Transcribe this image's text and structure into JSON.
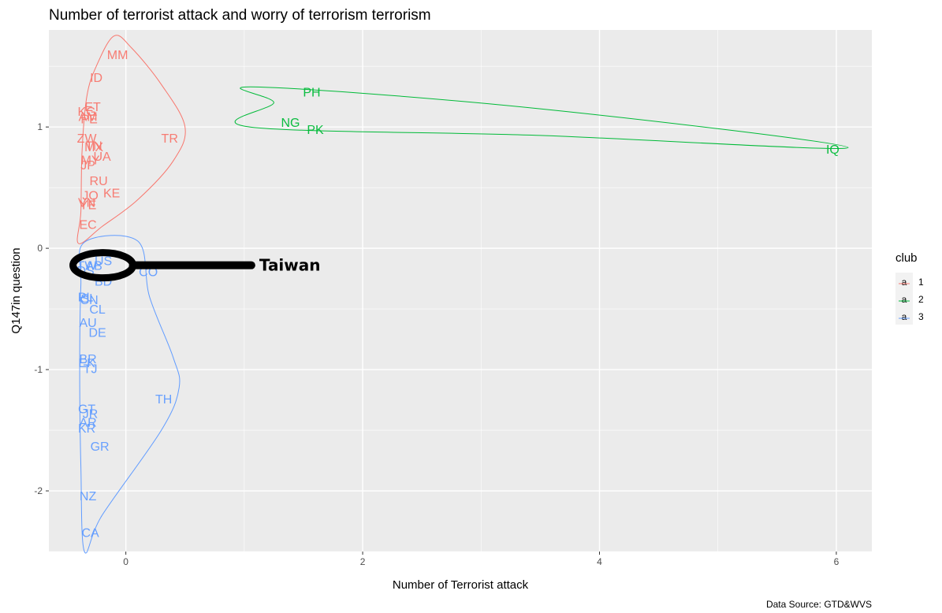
{
  "chart_data": {
    "type": "scatter",
    "title": "Number of terrorist attack and worry of terrorism terrorism",
    "xlabel": "Number of Terrorist attack",
    "ylabel": "Q147in question",
    "caption": "Data Source: GTD&WVS",
    "xlim": [
      -0.65,
      6.3
    ],
    "ylim": [
      -2.5,
      1.8
    ],
    "x_ticks": [
      0,
      2,
      4,
      6
    ],
    "x_tick_labels": [
      "0",
      "2",
      "4",
      "6"
    ],
    "y_ticks": [
      -2,
      -1,
      0,
      1
    ],
    "y_tick_labels": [
      "-2",
      "-1",
      "0",
      "1"
    ],
    "grid": true,
    "legend": {
      "title": "club",
      "position": "right",
      "key_glyph": "a",
      "entries": [
        {
          "label": "1",
          "color": "#F8766D"
        },
        {
          "label": "2",
          "color": "#00BA38"
        },
        {
          "label": "3",
          "color": "#619CFF"
        }
      ]
    },
    "series": [
      {
        "name": "1",
        "color": "#F8766D",
        "points": [
          {
            "label": "MM",
            "x": -0.07,
            "y": 1.6
          },
          {
            "label": "ID",
            "x": -0.25,
            "y": 1.41
          },
          {
            "label": "ET",
            "x": -0.28,
            "y": 1.17
          },
          {
            "label": "KG",
            "x": -0.33,
            "y": 1.13
          },
          {
            "label": "AM",
            "x": -0.32,
            "y": 1.09
          },
          {
            "label": "PE",
            "x": -0.31,
            "y": 1.07
          },
          {
            "label": "ZW",
            "x": -0.33,
            "y": 0.91
          },
          {
            "label": "TR",
            "x": 0.37,
            "y": 0.91
          },
          {
            "label": "TN",
            "x": -0.27,
            "y": 0.85
          },
          {
            "label": "MX",
            "x": -0.27,
            "y": 0.84
          },
          {
            "label": "UA",
            "x": -0.2,
            "y": 0.76
          },
          {
            "label": "MY",
            "x": -0.3,
            "y": 0.73
          },
          {
            "label": "JP",
            "x": -0.32,
            "y": 0.69
          },
          {
            "label": "RU",
            "x": -0.23,
            "y": 0.56
          },
          {
            "label": "KE",
            "x": -0.12,
            "y": 0.46
          },
          {
            "label": "JO",
            "x": -0.3,
            "y": 0.44
          },
          {
            "label": "VN",
            "x": -0.33,
            "y": 0.38
          },
          {
            "label": "YE",
            "x": -0.32,
            "y": 0.36
          },
          {
            "label": "EC",
            "x": -0.32,
            "y": 0.2
          }
        ]
      },
      {
        "name": "2",
        "color": "#00BA38",
        "points": [
          {
            "label": "PH",
            "x": 1.57,
            "y": 1.29
          },
          {
            "label": "NG",
            "x": 1.39,
            "y": 1.04
          },
          {
            "label": "PK",
            "x": 1.6,
            "y": 0.98
          },
          {
            "label": "IQ",
            "x": 5.97,
            "y": 0.82
          }
        ]
      },
      {
        "name": "3",
        "color": "#619CFF",
        "points": [
          {
            "label": "US",
            "x": -0.19,
            "y": -0.1
          },
          {
            "label": "TW",
            "x": -0.33,
            "y": -0.14
          },
          {
            "label": "AB",
            "x": -0.27,
            "y": -0.14
          },
          {
            "label": "CO",
            "x": 0.19,
            "y": -0.19
          },
          {
            "label": "DS",
            "x": -0.34,
            "y": -0.18
          },
          {
            "label": "BD",
            "x": -0.19,
            "y": -0.27
          },
          {
            "label": "PL",
            "x": -0.34,
            "y": -0.4
          },
          {
            "label": "SI",
            "x": -0.33,
            "y": -0.41
          },
          {
            "label": "CN",
            "x": -0.31,
            "y": -0.42
          },
          {
            "label": "CL",
            "x": -0.24,
            "y": -0.5
          },
          {
            "label": "AU",
            "x": -0.32,
            "y": -0.61
          },
          {
            "label": "DE",
            "x": -0.24,
            "y": -0.69
          },
          {
            "label": "BR",
            "x": -0.32,
            "y": -0.91
          },
          {
            "label": "EK",
            "x": -0.33,
            "y": -0.94
          },
          {
            "label": "TJ",
            "x": -0.3,
            "y": -0.99
          },
          {
            "label": "TH",
            "x": 0.32,
            "y": -1.24
          },
          {
            "label": "GT",
            "x": -0.33,
            "y": -1.32
          },
          {
            "label": "JR",
            "x": -0.3,
            "y": -1.36
          },
          {
            "label": "AR",
            "x": -0.32,
            "y": -1.43
          },
          {
            "label": "KR",
            "x": -0.33,
            "y": -1.48
          },
          {
            "label": "GR",
            "x": -0.22,
            "y": -1.63
          },
          {
            "label": "NZ",
            "x": -0.32,
            "y": -2.04
          },
          {
            "label": "CA",
            "x": -0.3,
            "y": -2.34
          }
        ]
      }
    ],
    "annotations": [
      {
        "text": "Taiwan",
        "x": -0.3,
        "y": -0.14,
        "label_x": 1.1,
        "label_y": -0.14
      }
    ]
  }
}
